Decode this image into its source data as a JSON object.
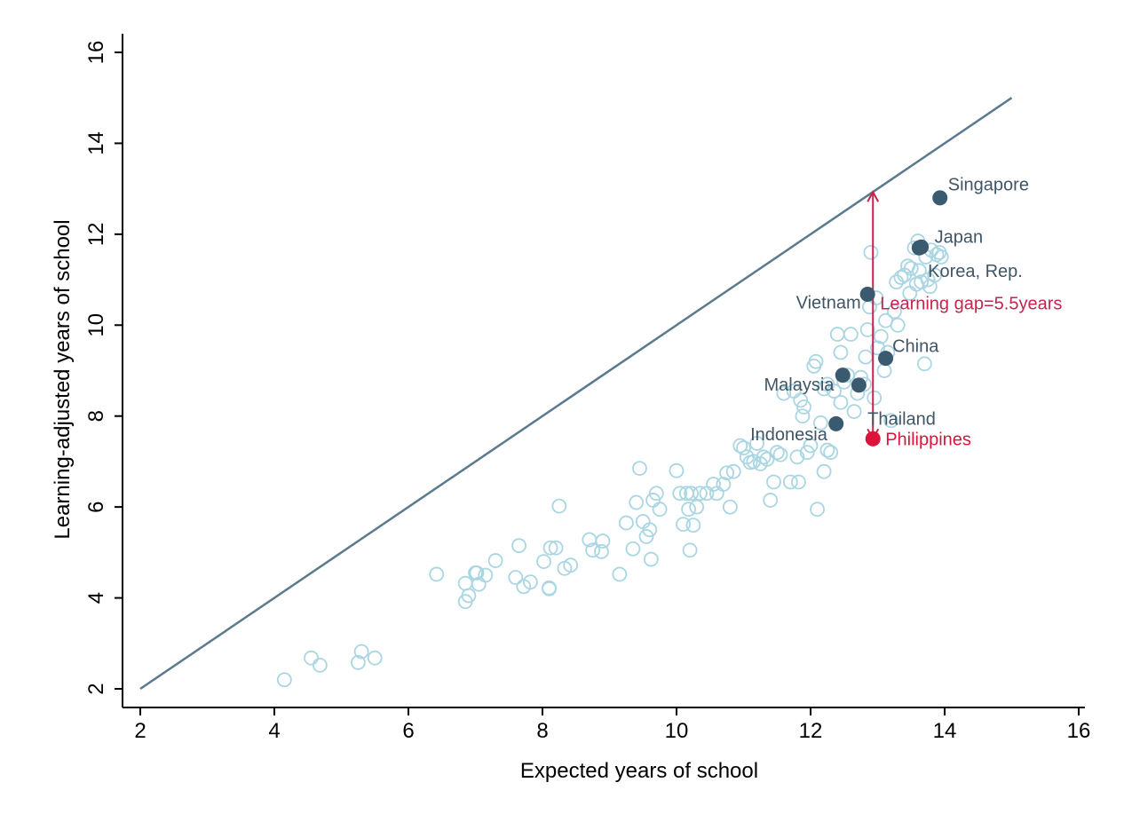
{
  "chart_data": {
    "type": "scatter",
    "xlabel": "Expected years of school",
    "ylabel": "Learning-adjusted years of school",
    "xlim": [
      2,
      16
    ],
    "ylim": [
      2,
      16
    ],
    "x_ticks": [
      "2",
      "4",
      "6",
      "8",
      "10",
      "12",
      "14",
      "16"
    ],
    "y_ticks": [
      "2",
      "4",
      "6",
      "8",
      "10",
      "12",
      "14",
      "16"
    ],
    "grid": false,
    "reference_line": {
      "x": [
        2,
        15
      ],
      "y": [
        2,
        15
      ]
    },
    "colors": {
      "background_points": "#a9d6e2",
      "highlight_points": "#3a5a70",
      "focus_point": "#dc143c",
      "reference_line": "#5b7a8e",
      "gap_arrow": "#c8234d",
      "label_text": "#3f5566"
    },
    "background_points": [
      [
        4.15,
        2.2
      ],
      [
        4.55,
        2.68
      ],
      [
        4.68,
        2.52
      ],
      [
        5.25,
        2.58
      ],
      [
        5.3,
        2.82
      ],
      [
        5.5,
        2.68
      ],
      [
        6.42,
        4.52
      ],
      [
        6.85,
        3.92
      ],
      [
        6.9,
        4.05
      ],
      [
        6.85,
        4.32
      ],
      [
        7.0,
        4.55
      ],
      [
        7.05,
        4.3
      ],
      [
        7.02,
        4.55
      ],
      [
        7.15,
        4.5
      ],
      [
        7.3,
        4.82
      ],
      [
        7.6,
        4.45
      ],
      [
        7.65,
        5.15
      ],
      [
        7.72,
        4.25
      ],
      [
        7.82,
        4.35
      ],
      [
        8.02,
        4.8
      ],
      [
        8.1,
        4.22
      ],
      [
        8.12,
        5.1
      ],
      [
        8.1,
        4.2
      ],
      [
        8.2,
        5.1
      ],
      [
        8.25,
        6.02
      ],
      [
        8.33,
        4.65
      ],
      [
        8.42,
        4.72
      ],
      [
        8.7,
        5.28
      ],
      [
        8.75,
        5.05
      ],
      [
        8.9,
        5.25
      ],
      [
        8.88,
        5.02
      ],
      [
        9.15,
        4.52
      ],
      [
        9.25,
        5.65
      ],
      [
        9.35,
        5.08
      ],
      [
        9.4,
        6.1
      ],
      [
        9.45,
        6.85
      ],
      [
        9.5,
        5.68
      ],
      [
        9.55,
        5.35
      ],
      [
        9.6,
        5.5
      ],
      [
        9.62,
        4.85
      ],
      [
        9.65,
        6.15
      ],
      [
        9.7,
        6.3
      ],
      [
        9.75,
        5.95
      ],
      [
        10.0,
        6.8
      ],
      [
        10.05,
        6.3
      ],
      [
        10.1,
        5.62
      ],
      [
        10.15,
        6.3
      ],
      [
        10.18,
        5.95
      ],
      [
        10.2,
        5.05
      ],
      [
        10.22,
        6.3
      ],
      [
        10.25,
        5.6
      ],
      [
        10.3,
        6.0
      ],
      [
        10.35,
        6.3
      ],
      [
        10.45,
        6.3
      ],
      [
        10.55,
        6.5
      ],
      [
        10.6,
        6.3
      ],
      [
        10.7,
        6.5
      ],
      [
        10.75,
        6.75
      ],
      [
        10.8,
        6.0
      ],
      [
        10.85,
        6.78
      ],
      [
        10.95,
        7.35
      ],
      [
        11.0,
        7.3
      ],
      [
        11.05,
        7.1
      ],
      [
        11.1,
        6.98
      ],
      [
        11.15,
        7.0
      ],
      [
        11.2,
        7.4
      ],
      [
        11.25,
        6.95
      ],
      [
        11.3,
        7.1
      ],
      [
        11.35,
        7.05
      ],
      [
        11.4,
        6.15
      ],
      [
        11.45,
        6.55
      ],
      [
        11.5,
        7.2
      ],
      [
        11.55,
        7.15
      ],
      [
        11.6,
        8.5
      ],
      [
        11.7,
        6.55
      ],
      [
        11.75,
        8.55
      ],
      [
        11.8,
        7.1
      ],
      [
        11.82,
        6.55
      ],
      [
        11.85,
        8.35
      ],
      [
        11.88,
        8.0
      ],
      [
        11.9,
        8.2
      ],
      [
        11.95,
        7.2
      ],
      [
        12.0,
        7.35
      ],
      [
        12.05,
        9.1
      ],
      [
        12.08,
        9.2
      ],
      [
        12.1,
        5.95
      ],
      [
        12.15,
        7.85
      ],
      [
        12.2,
        8.6
      ],
      [
        12.2,
        6.78
      ],
      [
        12.25,
        7.25
      ],
      [
        12.25,
        8.7
      ],
      [
        12.3,
        7.2
      ],
      [
        12.35,
        8.55
      ],
      [
        12.4,
        9.8
      ],
      [
        12.45,
        9.4
      ],
      [
        12.45,
        8.3
      ],
      [
        12.5,
        8.75
      ],
      [
        12.55,
        8.9
      ],
      [
        12.6,
        9.8
      ],
      [
        12.65,
        8.1
      ],
      [
        12.7,
        8.5
      ],
      [
        12.75,
        8.85
      ],
      [
        12.8,
        8.7
      ],
      [
        12.82,
        9.3
      ],
      [
        12.85,
        9.9
      ],
      [
        12.88,
        10.4
      ],
      [
        12.9,
        11.6
      ],
      [
        12.95,
        8.4
      ],
      [
        12.98,
        10.6
      ],
      [
        13.0,
        9.5
      ],
      [
        13.05,
        9.75
      ],
      [
        13.1,
        9.0
      ],
      [
        13.12,
        10.1
      ],
      [
        13.15,
        9.4
      ],
      [
        13.2,
        7.9
      ],
      [
        13.25,
        10.3
      ],
      [
        13.28,
        10.95
      ],
      [
        13.3,
        10.0
      ],
      [
        13.35,
        11.05
      ],
      [
        13.4,
        11.1
      ],
      [
        13.45,
        11.3
      ],
      [
        13.48,
        10.7
      ],
      [
        13.5,
        11.25
      ],
      [
        13.55,
        11.7
      ],
      [
        13.58,
        10.9
      ],
      [
        13.6,
        11.85
      ],
      [
        13.62,
        11.2
      ],
      [
        13.65,
        10.95
      ],
      [
        13.7,
        9.15
      ],
      [
        13.72,
        11.5
      ],
      [
        13.75,
        11.0
      ],
      [
        13.78,
        10.85
      ],
      [
        13.8,
        11.65
      ],
      [
        13.85,
        11.1
      ],
      [
        13.88,
        11.55
      ],
      [
        13.92,
        11.6
      ],
      [
        13.95,
        11.5
      ]
    ],
    "highlight_points": [
      {
        "name": "Singapore",
        "x": 13.93,
        "y": 12.8
      },
      {
        "name": "Japan",
        "x": 13.62,
        "y": 11.7
      },
      {
        "name": "Korea, Rep.",
        "x": 13.65,
        "y": 11.72
      },
      {
        "name": "Vietnam",
        "x": 12.85,
        "y": 10.68
      },
      {
        "name": "China",
        "x": 13.12,
        "y": 9.27
      },
      {
        "name": "Malaysia",
        "x": 12.48,
        "y": 8.9
      },
      {
        "name": "Thailand",
        "x": 12.72,
        "y": 8.68
      },
      {
        "name": "Indonesia",
        "x": 12.38,
        "y": 7.83
      }
    ],
    "focus_point": {
      "name": "Philippines",
      "x": 12.93,
      "y": 7.5
    },
    "gap_arrow": {
      "x": 12.93,
      "y_from": 7.5,
      "y_to": 12.93,
      "label": "Learning gap=5.5years"
    },
    "labels": [
      {
        "text": "Singapore",
        "x": 14.05,
        "y": 13.1,
        "anchor": "start"
      },
      {
        "text": "Japan",
        "x": 13.85,
        "y": 11.95,
        "anchor": "start"
      },
      {
        "text": "Korea, Rep.",
        "x": 13.75,
        "y": 11.2,
        "anchor": "start"
      },
      {
        "text": "Vietnam",
        "x": 12.75,
        "y": 10.5,
        "anchor": "end"
      },
      {
        "text": "China",
        "x": 13.22,
        "y": 9.55,
        "anchor": "start"
      },
      {
        "text": "Malaysia",
        "x": 12.35,
        "y": 8.7,
        "anchor": "end"
      },
      {
        "text": "Thailand",
        "x": 12.85,
        "y": 7.95,
        "anchor": "start"
      },
      {
        "text": "Indonesia",
        "x": 12.25,
        "y": 7.6,
        "anchor": "end"
      }
    ]
  }
}
